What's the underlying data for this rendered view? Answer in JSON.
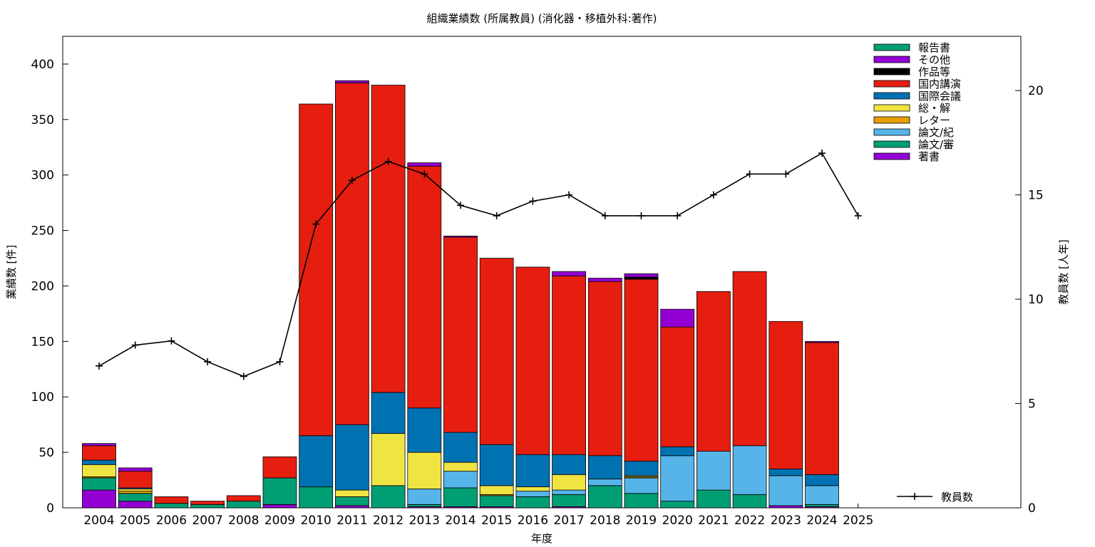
{
  "chart_data": {
    "type": "bar",
    "stacked": true,
    "title": "組織業績数 (所属教員) (消化器・移植外科:著作)",
    "xlabel": "年度",
    "ylabel": "業績数 [件]",
    "y2label": "教員数 [人年]",
    "categories": [
      "2004",
      "2005",
      "2006",
      "2007",
      "2008",
      "2009",
      "2010",
      "2011",
      "2012",
      "2013",
      "2014",
      "2015",
      "2016",
      "2017",
      "2018",
      "2019",
      "2020",
      "2021",
      "2022",
      "2023",
      "2024",
      "2025"
    ],
    "ylim": [
      0,
      425
    ],
    "y2lim": [
      0,
      22.6
    ],
    "yticks": [
      0,
      50,
      100,
      150,
      200,
      250,
      300,
      350,
      400
    ],
    "y2ticks": [
      0,
      5,
      10,
      15,
      20
    ],
    "legend_position": "top-right",
    "series": [
      {
        "name": "著書",
        "color": "#9400d3",
        "values": [
          16,
          6,
          0,
          0,
          0,
          3,
          0,
          2,
          0,
          1,
          1,
          1,
          0,
          1,
          0,
          0,
          0,
          0,
          0,
          2,
          1,
          0
        ]
      },
      {
        "name": "論文/審",
        "color": "#009e73",
        "values": [
          11,
          7,
          4,
          3,
          6,
          24,
          19,
          8,
          20,
          2,
          17,
          10,
          10,
          11,
          20,
          13,
          6,
          16,
          12,
          0,
          2,
          0
        ]
      },
      {
        "name": "論文/紀",
        "color": "#56b4e9",
        "values": [
          0,
          0,
          0,
          0,
          0,
          0,
          0,
          0,
          0,
          14,
          15,
          0,
          5,
          4,
          6,
          14,
          41,
          35,
          44,
          27,
          17,
          0
        ]
      },
      {
        "name": "レター",
        "color": "#e69f00",
        "values": [
          1,
          2,
          0,
          0,
          0,
          0,
          0,
          0,
          0,
          0,
          0,
          1,
          0,
          0,
          0,
          1,
          0,
          0,
          0,
          0,
          0,
          0
        ]
      },
      {
        "name": "総・解",
        "color": "#f0e442",
        "values": [
          11,
          2,
          0,
          0,
          0,
          0,
          0,
          6,
          47,
          33,
          8,
          8,
          4,
          14,
          0,
          1,
          0,
          0,
          0,
          0,
          0,
          0
        ]
      },
      {
        "name": "国際会議",
        "color": "#0072b2",
        "values": [
          4,
          1,
          0,
          0,
          0,
          0,
          46,
          59,
          37,
          40,
          27,
          37,
          29,
          18,
          21,
          13,
          8,
          0,
          0,
          6,
          10,
          0
        ]
      },
      {
        "name": "国内講演",
        "color": "#e51e10",
        "values": [
          13,
          15,
          6,
          3,
          5,
          19,
          299,
          308,
          277,
          218,
          176,
          168,
          169,
          161,
          157,
          164,
          108,
          144,
          157,
          133,
          119,
          0
        ]
      },
      {
        "name": "作品等",
        "color": "#000000",
        "values": [
          0,
          0,
          0,
          0,
          0,
          0,
          0,
          0,
          0,
          0,
          0,
          0,
          0,
          0,
          0,
          2,
          0,
          0,
          0,
          0,
          0,
          0
        ]
      },
      {
        "name": "その他",
        "color": "#9400d3",
        "values": [
          2,
          3,
          0,
          0,
          0,
          0,
          0,
          2,
          0,
          3,
          1,
          0,
          0,
          4,
          3,
          3,
          16,
          0,
          0,
          0,
          1,
          0
        ]
      },
      {
        "name": "報告書",
        "color": "#009e73",
        "values": [
          0,
          0,
          0,
          0,
          0,
          0,
          0,
          0,
          0,
          0,
          0,
          0,
          0,
          0,
          0,
          0,
          0,
          0,
          0,
          0,
          0,
          0
        ]
      }
    ],
    "line": {
      "name": "教員数",
      "color": "#000000",
      "axis": "right",
      "values": [
        6.8,
        7.8,
        8.0,
        7.0,
        6.3,
        7.0,
        13.6,
        15.7,
        16.6,
        16.0,
        14.5,
        14.0,
        14.7,
        15.0,
        14.0,
        14.0,
        14.0,
        15.0,
        16.0,
        16.0,
        17.0,
        14.0
      ]
    }
  }
}
